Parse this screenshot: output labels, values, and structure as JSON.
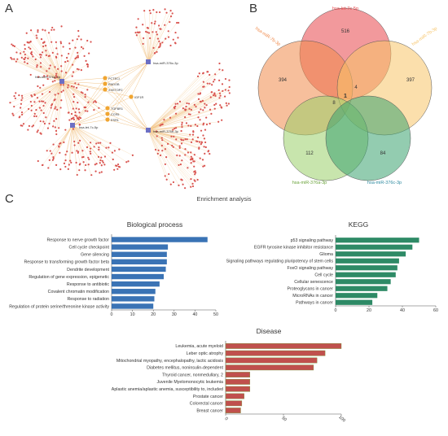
{
  "panels": {
    "a": "A",
    "b": "B",
    "c": "C"
  },
  "network": {
    "hub_labels": [
      "hsa-miR-376a-3p",
      "hsa-let-7c-5p",
      "hsa-miR-376c-3p",
      "hsa-miR-376b-3p"
    ],
    "gene_labels": [
      "PCTECI",
      "ENDOB",
      "XXKTOP2",
      "IGF1R",
      "TGFBR1",
      "CCR5",
      "ESR1"
    ],
    "colors": {
      "edge": "#f2c58a",
      "node": "#d9534f",
      "hub": "#6c6fc4",
      "highlight": "#f0a531"
    }
  },
  "venn": {
    "sets": [
      "hsa-let-7c-5p",
      "hsa-miR-7b-3p",
      "hsa-miR-7b-3p",
      "hsa-miR-376a-3p",
      "hsa-miR-376c-3p"
    ],
    "counts": {
      "top": "516",
      "left": "394",
      "right": "397",
      "bottom_left": "112",
      "bottom_right": "84",
      "center": "1",
      "i1": "4",
      "i2": "8"
    },
    "colors": {
      "top": "#e8464a",
      "left": "#f08a4b",
      "right": "#f7c468",
      "bottom_left": "#9bd06a",
      "bottom_right": "#3aa36f"
    }
  },
  "enrichment_title": "Enrichment analysis",
  "chart_data": [
    {
      "type": "bar",
      "title": "Biological process",
      "color": "#3a73b5",
      "xlim": [
        0,
        50
      ],
      "ticks": [
        "0",
        "10",
        "20",
        "30",
        "40",
        "50"
      ],
      "categories": [
        "Response to nerve growth factor",
        "Cell cycle checkpoint",
        "Gene silencing",
        "Response to transforming growth factor beta",
        "Dendrite development",
        "Regulation of gene expression, epigenetic",
        "Response to antibiotic",
        "Covalent chromatin modification",
        "Response to radiation",
        "Regulation of protein serine/threonine kinase activity"
      ],
      "values": [
        46,
        27,
        26.5,
        26.5,
        26,
        25,
        23,
        21,
        20.5,
        20
      ]
    },
    {
      "type": "bar",
      "title": "KEGG",
      "color": "#2e8a66",
      "xlim": [
        0,
        60
      ],
      "ticks": [
        "0",
        "20",
        "40",
        "60"
      ],
      "categories": [
        "p53 signaling pathway",
        "EGFR tyrosine kinase inhibitor resistance",
        "Glioma",
        "Signaling pathways regulating pluripotency of stem cells",
        "FoxO signaling pathway",
        "Cell cycle",
        "Cellular senescence",
        "Proteoglycans in cancer",
        "MicroRNAs in cancer",
        "Pathways in cancer"
      ],
      "values": [
        50,
        46,
        42,
        38,
        37,
        36,
        33,
        31,
        25,
        22
      ]
    },
    {
      "type": "bar",
      "title": "Disease",
      "color": "#c0504d",
      "edge": "#7a9a3a",
      "xlim": [
        0,
        100
      ],
      "ticks": [
        "0",
        "50",
        "100"
      ],
      "categories": [
        "Leukemia, acute myeloid",
        "Leber optic atrophy",
        "Mitochondrial myopathy, encephalopathy, lactic acidosis",
        "Diabetes mellitus, noninsulin-dependent",
        "Thyroid cancer, nonmedullary, 2",
        "Juvenile Myelomonocytic leukemia",
        "Aplastic anemia/aplastic anemia, susceptibility to, included",
        "Prostate cancer",
        "Colorectal cancer",
        "Breast cancer"
      ],
      "values": [
        100,
        86,
        79,
        76,
        21,
        21,
        21,
        16,
        14,
        13
      ]
    }
  ]
}
